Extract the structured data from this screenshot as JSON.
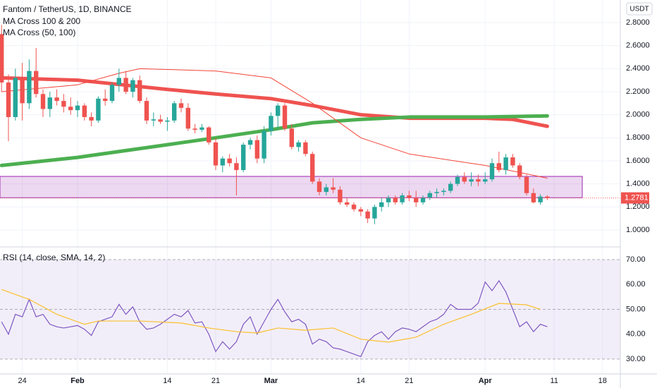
{
  "chart_data": [
    {
      "type": "candlestick",
      "title": "Fantom / TetherUS, 1D, BINANCE",
      "y_unit": "USDT",
      "x": [
        "Jan 21",
        "Jan 22",
        "Jan 23",
        "Jan 24",
        "Jan 25",
        "Jan 26",
        "Jan 27",
        "Jan 28",
        "Jan 29",
        "Jan 30",
        "Jan 31",
        "Feb 1",
        "Feb 2",
        "Feb 3",
        "Feb 4",
        "Feb 5",
        "Feb 6",
        "Feb 7",
        "Feb 8",
        "Feb 9",
        "Feb 10",
        "Feb 11",
        "Feb 12",
        "Feb 13",
        "Feb 14",
        "Feb 15",
        "Feb 16",
        "Feb 17",
        "Feb 18",
        "Feb 19",
        "Feb 20",
        "Feb 21",
        "Feb 22",
        "Feb 23",
        "Feb 24",
        "Feb 25",
        "Feb 26",
        "Feb 27",
        "Feb 28",
        "Mar 1",
        "Mar 2",
        "Mar 3",
        "Mar 4",
        "Mar 5",
        "Mar 6",
        "Mar 7",
        "Mar 8",
        "Mar 9",
        "Mar 10",
        "Mar 11",
        "Mar 12",
        "Mar 13",
        "Mar 14",
        "Mar 15",
        "Mar 16",
        "Mar 17",
        "Mar 18",
        "Mar 19",
        "Mar 20",
        "Mar 21",
        "Mar 22",
        "Mar 23",
        "Mar 24",
        "Mar 25",
        "Mar 26",
        "Mar 27",
        "Mar 28",
        "Mar 29",
        "Mar 30",
        "Mar 31",
        "Apr 1",
        "Apr 2",
        "Apr 3",
        "Apr 4",
        "Apr 5",
        "Apr 6",
        "Apr 7",
        "Apr 8",
        "Apr 9",
        "Apr 10"
      ],
      "open": [
        2.7,
        2.28,
        1.98,
        2.32,
        2.1,
        2.38,
        2.18,
        2.05,
        2.15,
        2.12,
        2.07,
        2.04,
        2.08,
        1.98,
        1.95,
        2.14,
        2.12,
        2.26,
        2.32,
        2.2,
        2.3,
        2.12,
        1.95,
        1.96,
        1.94,
        1.95,
        2.1,
        2.06,
        1.88,
        1.87,
        1.89,
        1.76,
        1.56,
        1.62,
        1.58,
        1.52,
        1.74,
        1.78,
        1.62,
        1.86,
        1.99,
        2.08,
        1.88,
        1.72,
        1.76,
        1.66,
        1.42,
        1.33,
        1.37,
        1.35,
        1.24,
        1.22,
        1.18,
        1.16,
        1.1,
        1.2,
        1.24,
        1.28,
        1.24,
        1.3,
        1.28,
        1.24,
        1.28,
        1.32,
        1.33,
        1.34,
        1.4,
        1.46,
        1.42,
        1.44,
        1.42,
        1.44,
        1.58,
        1.52,
        1.63,
        1.56,
        1.46,
        1.32,
        1.24,
        1.29
      ],
      "high": [
        2.78,
        2.35,
        2.4,
        2.45,
        2.48,
        2.58,
        2.22,
        2.2,
        2.22,
        2.18,
        2.15,
        2.12,
        2.1,
        2.02,
        2.16,
        2.22,
        2.28,
        2.4,
        2.38,
        2.32,
        2.34,
        2.15,
        2.02,
        2.0,
        1.98,
        2.12,
        2.14,
        2.1,
        1.92,
        1.92,
        1.9,
        1.8,
        1.64,
        1.66,
        1.63,
        1.76,
        1.8,
        1.82,
        1.9,
        2.02,
        2.1,
        2.1,
        1.92,
        1.78,
        1.78,
        1.68,
        1.45,
        1.4,
        1.45,
        1.38,
        1.28,
        1.24,
        1.2,
        1.18,
        1.22,
        1.28,
        1.3,
        1.3,
        1.32,
        1.34,
        1.34,
        1.3,
        1.34,
        1.36,
        1.36,
        1.42,
        1.48,
        1.5,
        1.5,
        1.48,
        1.5,
        1.62,
        1.68,
        1.66,
        1.66,
        1.58,
        1.48,
        1.36,
        1.31,
        1.3
      ],
      "low": [
        2.2,
        1.77,
        1.95,
        1.95,
        2.05,
        2.15,
        1.98,
        1.98,
        2.08,
        2.02,
        2.0,
        1.98,
        1.95,
        1.9,
        1.93,
        2.08,
        2.1,
        2.2,
        2.18,
        2.15,
        2.1,
        1.92,
        1.9,
        1.92,
        1.86,
        1.93,
        2.02,
        1.86,
        1.84,
        1.85,
        1.74,
        1.52,
        1.5,
        1.55,
        1.3,
        1.5,
        1.7,
        1.58,
        1.58,
        1.82,
        1.88,
        1.86,
        1.7,
        1.68,
        1.64,
        1.4,
        1.3,
        1.3,
        1.32,
        1.22,
        1.2,
        1.16,
        1.12,
        1.06,
        1.05,
        1.16,
        1.2,
        1.22,
        1.22,
        1.25,
        1.2,
        1.22,
        1.26,
        1.28,
        1.3,
        1.32,
        1.38,
        1.4,
        1.38,
        1.38,
        1.4,
        1.42,
        1.5,
        1.48,
        1.54,
        1.44,
        1.3,
        1.23,
        1.22,
        1.26
      ],
      "close": [
        2.28,
        1.98,
        2.32,
        2.1,
        2.38,
        2.18,
        2.05,
        2.15,
        2.12,
        2.07,
        2.04,
        2.08,
        1.98,
        1.95,
        2.14,
        2.12,
        2.26,
        2.32,
        2.2,
        2.3,
        2.12,
        1.95,
        1.96,
        1.94,
        1.95,
        2.1,
        2.06,
        1.88,
        1.87,
        1.89,
        1.76,
        1.56,
        1.62,
        1.58,
        1.52,
        1.74,
        1.78,
        1.62,
        1.86,
        1.99,
        2.08,
        1.88,
        1.72,
        1.76,
        1.66,
        1.42,
        1.33,
        1.37,
        1.35,
        1.24,
        1.22,
        1.18,
        1.16,
        1.1,
        1.2,
        1.24,
        1.28,
        1.24,
        1.3,
        1.28,
        1.24,
        1.28,
        1.32,
        1.33,
        1.34,
        1.4,
        1.46,
        1.42,
        1.44,
        1.42,
        1.44,
        1.58,
        1.52,
        1.63,
        1.56,
        1.46,
        1.32,
        1.24,
        1.29,
        1.2781
      ],
      "up_color": "#26a69a",
      "down_color": "#ef5350",
      "last_price": 1.2781,
      "overlays": [
        {
          "name": "MA Cross 100 & 200",
          "lines": [
            {
              "color": "#ef5350",
              "width": 5,
              "x": [
                "Jan 21",
                "Feb 1",
                "Feb 14",
                "Feb 21",
                "Mar 1",
                "Mar 7",
                "Mar 14",
                "Mar 21",
                "Apr 1",
                "Apr 5",
                "Apr 10"
              ],
              "values": [
                2.32,
                2.3,
                2.22,
                2.18,
                2.14,
                2.08,
                2.0,
                1.97,
                1.97,
                1.96,
                1.9
              ]
            },
            {
              "color": "#4caf50",
              "width": 5,
              "x": [
                "Jan 21",
                "Feb 1",
                "Feb 14",
                "Feb 21",
                "Mar 1",
                "Mar 7",
                "Mar 14",
                "Mar 21",
                "Apr 1",
                "Apr 10"
              ],
              "values": [
                1.56,
                1.63,
                1.74,
                1.8,
                1.87,
                1.93,
                1.96,
                1.98,
                1.98,
                1.99
              ]
            }
          ]
        },
        {
          "name": "MA Cross (50, 100)",
          "lines": [
            {
              "color": "#f44336",
              "width": 1,
              "x": [
                "Jan 21",
                "Feb 1",
                "Feb 7",
                "Feb 10",
                "Feb 21",
                "Mar 1",
                "Mar 7",
                "Mar 14",
                "Mar 21",
                "Apr 1",
                "Apr 10"
              ],
              "values": [
                2.2,
                2.26,
                2.36,
                2.4,
                2.38,
                2.32,
                2.1,
                1.8,
                1.66,
                1.56,
                1.45
              ]
            }
          ]
        }
      ],
      "zone": {
        "low": 1.28,
        "high": 1.465,
        "color": "#9c27b0"
      },
      "ylim": [
        0.853,
        2.996
      ],
      "yticks": [
        {
          "value": 2.8,
          "label": "2.8000"
        },
        {
          "value": 2.6,
          "label": "2.6000"
        },
        {
          "value": 2.4,
          "label": "2.4000"
        },
        {
          "value": 2.2,
          "label": "2.2000"
        },
        {
          "value": 2.0,
          "label": "2.0000"
        },
        {
          "value": 1.8,
          "label": "1.8000"
        },
        {
          "value": 1.6,
          "label": "1.6000"
        },
        {
          "value": 1.4,
          "label": "1.4000"
        },
        {
          "value": 1.2,
          "label": "1.2000"
        },
        {
          "value": 1.0,
          "label": "1.0000"
        }
      ],
      "xticks": [
        {
          "value": "Jan 24",
          "label": "24"
        },
        {
          "value": "Feb 1",
          "label": "Feb"
        },
        {
          "value": "Feb 14",
          "label": "14"
        },
        {
          "value": "Feb 21",
          "label": "21"
        },
        {
          "value": "Mar 1",
          "label": "Mar"
        },
        {
          "value": "Mar 14",
          "label": "14"
        },
        {
          "value": "Mar 21",
          "label": "21"
        },
        {
          "value": "Apr 1",
          "label": "Apr"
        },
        {
          "value": "Apr 11",
          "label": "11"
        },
        {
          "value": "Apr 18",
          "label": "18"
        }
      ],
      "grid": true
    },
    {
      "type": "line",
      "title": "RSI (14, close, SMA, 14, 2)",
      "series": [
        {
          "color": "#7e57c2",
          "x": [
            "Jan 21",
            "Jan 22",
            "Jan 23",
            "Jan 24",
            "Jan 25",
            "Jan 26",
            "Jan 27",
            "Jan 28",
            "Jan 29",
            "Jan 30",
            "Jan 31",
            "Feb 1",
            "Feb 2",
            "Feb 3",
            "Feb 4",
            "Feb 5",
            "Feb 6",
            "Feb 7",
            "Feb 8",
            "Feb 9",
            "Feb 10",
            "Feb 11",
            "Feb 12",
            "Feb 13",
            "Feb 14",
            "Feb 15",
            "Feb 16",
            "Feb 17",
            "Feb 18",
            "Feb 19",
            "Feb 20",
            "Feb 21",
            "Feb 22",
            "Feb 23",
            "Feb 24",
            "Feb 25",
            "Feb 26",
            "Feb 27",
            "Feb 28",
            "Mar 1",
            "Mar 2",
            "Mar 3",
            "Mar 4",
            "Mar 5",
            "Mar 6",
            "Mar 7",
            "Mar 8",
            "Mar 9",
            "Mar 10",
            "Mar 11",
            "Mar 12",
            "Mar 13",
            "Mar 14",
            "Mar 15",
            "Mar 16",
            "Mar 17",
            "Mar 18",
            "Mar 19",
            "Mar 20",
            "Mar 21",
            "Mar 22",
            "Mar 23",
            "Mar 24",
            "Mar 25",
            "Mar 26",
            "Mar 27",
            "Mar 28",
            "Mar 29",
            "Mar 30",
            "Mar 31",
            "Apr 1",
            "Apr 2",
            "Apr 3",
            "Apr 4",
            "Apr 5",
            "Apr 6",
            "Apr 7",
            "Apr 8",
            "Apr 9",
            "Apr 10"
          ],
          "values": [
            45,
            40,
            48,
            47,
            54,
            47,
            48,
            44,
            43,
            42.5,
            43,
            43.5,
            42,
            39.5,
            45,
            46,
            47,
            52,
            48,
            51,
            45,
            42,
            42.5,
            44,
            46,
            48,
            47,
            49.5,
            44.5,
            45,
            40,
            33,
            37,
            34,
            37,
            44,
            47,
            40,
            45,
            50,
            54,
            49,
            45,
            46,
            44,
            36,
            38,
            37,
            34.5,
            34,
            33,
            32,
            31,
            37,
            39.5,
            41,
            38,
            41,
            42.5,
            42,
            41,
            43,
            45,
            46,
            48,
            52,
            50,
            50,
            50,
            52.5,
            61,
            57.5,
            61.5,
            57,
            50,
            43,
            45,
            41,
            44,
            43
          ]
        },
        {
          "color": "#fbc02d",
          "x": [
            "Jan 21",
            "Jan 25",
            "Jan 29",
            "Feb 2",
            "Feb 4",
            "Feb 10",
            "Feb 16",
            "Feb 20",
            "Feb 24",
            "Feb 27",
            "Mar 2",
            "Mar 6",
            "Mar 10",
            "Mar 14",
            "Mar 18",
            "Mar 22",
            "Mar 26",
            "Mar 30",
            "Apr 3",
            "Apr 7",
            "Apr 9"
          ],
          "values": [
            58,
            54,
            48,
            44,
            45.3,
            45.3,
            44.5,
            42.5,
            41,
            40.5,
            42.5,
            41.6,
            42.5,
            38,
            36.8,
            38.8,
            44,
            48,
            52.4,
            51.8,
            50
          ]
        }
      ],
      "bands": {
        "upper": 70,
        "middle": 50,
        "lower": 30,
        "color": "#7e57c2"
      },
      "ylim": [
        24.04,
        75.1
      ],
      "yticks": [
        {
          "value": 70,
          "label": "70.00"
        },
        {
          "value": 60,
          "label": "60.00"
        },
        {
          "value": 50,
          "label": "50.00"
        },
        {
          "value": 40,
          "label": "40.00"
        },
        {
          "value": 30,
          "label": "30.00"
        }
      ]
    }
  ]
}
